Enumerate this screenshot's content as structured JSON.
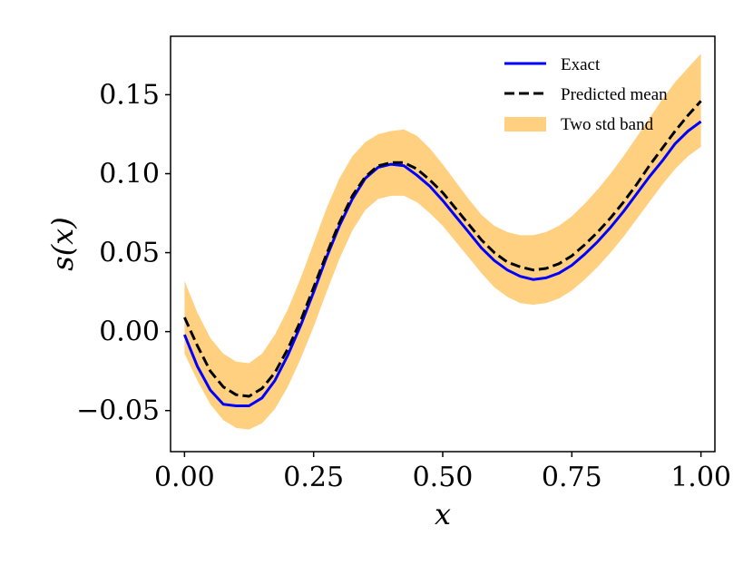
{
  "chart_data": {
    "type": "line",
    "title": "",
    "xlabel": "x",
    "ylabel": "s(x)",
    "xlim": [
      -0.027,
      1.027
    ],
    "ylim": [
      -0.076,
      0.187
    ],
    "xticks": [
      0.0,
      0.25,
      0.5,
      0.75,
      1.0
    ],
    "xtick_labels": [
      "0.00",
      "0.25",
      "0.50",
      "0.75",
      "1.00"
    ],
    "yticks": [
      -0.05,
      0.0,
      0.05,
      0.1,
      0.15
    ],
    "ytick_labels": [
      "−0.05",
      "0.00",
      "0.05",
      "0.10",
      "0.15"
    ],
    "grid": false,
    "legend_position": "top-right",
    "series": [
      {
        "name": "Exact",
        "style": "solid",
        "color": "#0000ff",
        "x": [
          0.0,
          0.025,
          0.05,
          0.075,
          0.1,
          0.125,
          0.15,
          0.175,
          0.2,
          0.225,
          0.25,
          0.275,
          0.3,
          0.325,
          0.35,
          0.375,
          0.4,
          0.425,
          0.45,
          0.475,
          0.5,
          0.525,
          0.55,
          0.575,
          0.6,
          0.625,
          0.65,
          0.675,
          0.7,
          0.725,
          0.75,
          0.775,
          0.8,
          0.825,
          0.85,
          0.875,
          0.9,
          0.925,
          0.95,
          0.975,
          1.0
        ],
        "y": [
          -0.002,
          -0.022,
          -0.037,
          -0.046,
          -0.047,
          -0.047,
          -0.042,
          -0.031,
          -0.015,
          0.004,
          0.025,
          0.047,
          0.067,
          0.084,
          0.097,
          0.104,
          0.106,
          0.105,
          0.099,
          0.092,
          0.083,
          0.073,
          0.063,
          0.053,
          0.045,
          0.039,
          0.035,
          0.033,
          0.034,
          0.037,
          0.042,
          0.049,
          0.057,
          0.066,
          0.076,
          0.087,
          0.098,
          0.108,
          0.119,
          0.127,
          0.133
        ]
      },
      {
        "name": "Predicted mean",
        "style": "dashed",
        "color": "#000000",
        "x": [
          0.0,
          0.025,
          0.05,
          0.075,
          0.1,
          0.125,
          0.15,
          0.175,
          0.2,
          0.225,
          0.25,
          0.275,
          0.3,
          0.325,
          0.35,
          0.375,
          0.4,
          0.425,
          0.45,
          0.475,
          0.5,
          0.525,
          0.55,
          0.575,
          0.6,
          0.625,
          0.65,
          0.675,
          0.7,
          0.725,
          0.75,
          0.775,
          0.8,
          0.825,
          0.85,
          0.875,
          0.9,
          0.925,
          0.95,
          0.975,
          1.0
        ],
        "y": [
          0.009,
          -0.009,
          -0.025,
          -0.035,
          -0.04,
          -0.041,
          -0.036,
          -0.026,
          -0.011,
          0.007,
          0.028,
          0.049,
          0.069,
          0.086,
          0.098,
          0.105,
          0.107,
          0.107,
          0.103,
          0.096,
          0.088,
          0.078,
          0.068,
          0.058,
          0.05,
          0.044,
          0.041,
          0.039,
          0.04,
          0.043,
          0.048,
          0.055,
          0.063,
          0.072,
          0.082,
          0.093,
          0.105,
          0.116,
          0.127,
          0.137,
          0.146
        ]
      },
      {
        "name": "Two std band",
        "style": "band",
        "color": "#ffd080",
        "x": [
          0.0,
          0.025,
          0.05,
          0.075,
          0.1,
          0.125,
          0.15,
          0.175,
          0.2,
          0.225,
          0.25,
          0.275,
          0.3,
          0.325,
          0.35,
          0.375,
          0.4,
          0.425,
          0.45,
          0.475,
          0.5,
          0.525,
          0.55,
          0.575,
          0.6,
          0.625,
          0.65,
          0.675,
          0.7,
          0.725,
          0.75,
          0.775,
          0.8,
          0.825,
          0.85,
          0.875,
          0.9,
          0.925,
          0.95,
          0.975,
          1.0
        ],
        "upper": [
          0.032,
          0.012,
          -0.004,
          -0.014,
          -0.019,
          -0.02,
          -0.014,
          -0.002,
          0.014,
          0.034,
          0.056,
          0.078,
          0.097,
          0.111,
          0.12,
          0.125,
          0.127,
          0.128,
          0.124,
          0.116,
          0.106,
          0.095,
          0.084,
          0.074,
          0.067,
          0.063,
          0.061,
          0.061,
          0.063,
          0.067,
          0.073,
          0.081,
          0.09,
          0.1,
          0.111,
          0.123,
          0.135,
          0.147,
          0.158,
          0.167,
          0.176
        ],
        "lower": [
          -0.014,
          -0.031,
          -0.046,
          -0.056,
          -0.061,
          -0.062,
          -0.058,
          -0.049,
          -0.035,
          -0.017,
          0.003,
          0.025,
          0.046,
          0.064,
          0.077,
          0.084,
          0.086,
          0.086,
          0.082,
          0.075,
          0.067,
          0.057,
          0.047,
          0.037,
          0.028,
          0.022,
          0.018,
          0.017,
          0.018,
          0.021,
          0.026,
          0.033,
          0.041,
          0.05,
          0.06,
          0.071,
          0.082,
          0.093,
          0.103,
          0.111,
          0.117
        ]
      }
    ]
  }
}
